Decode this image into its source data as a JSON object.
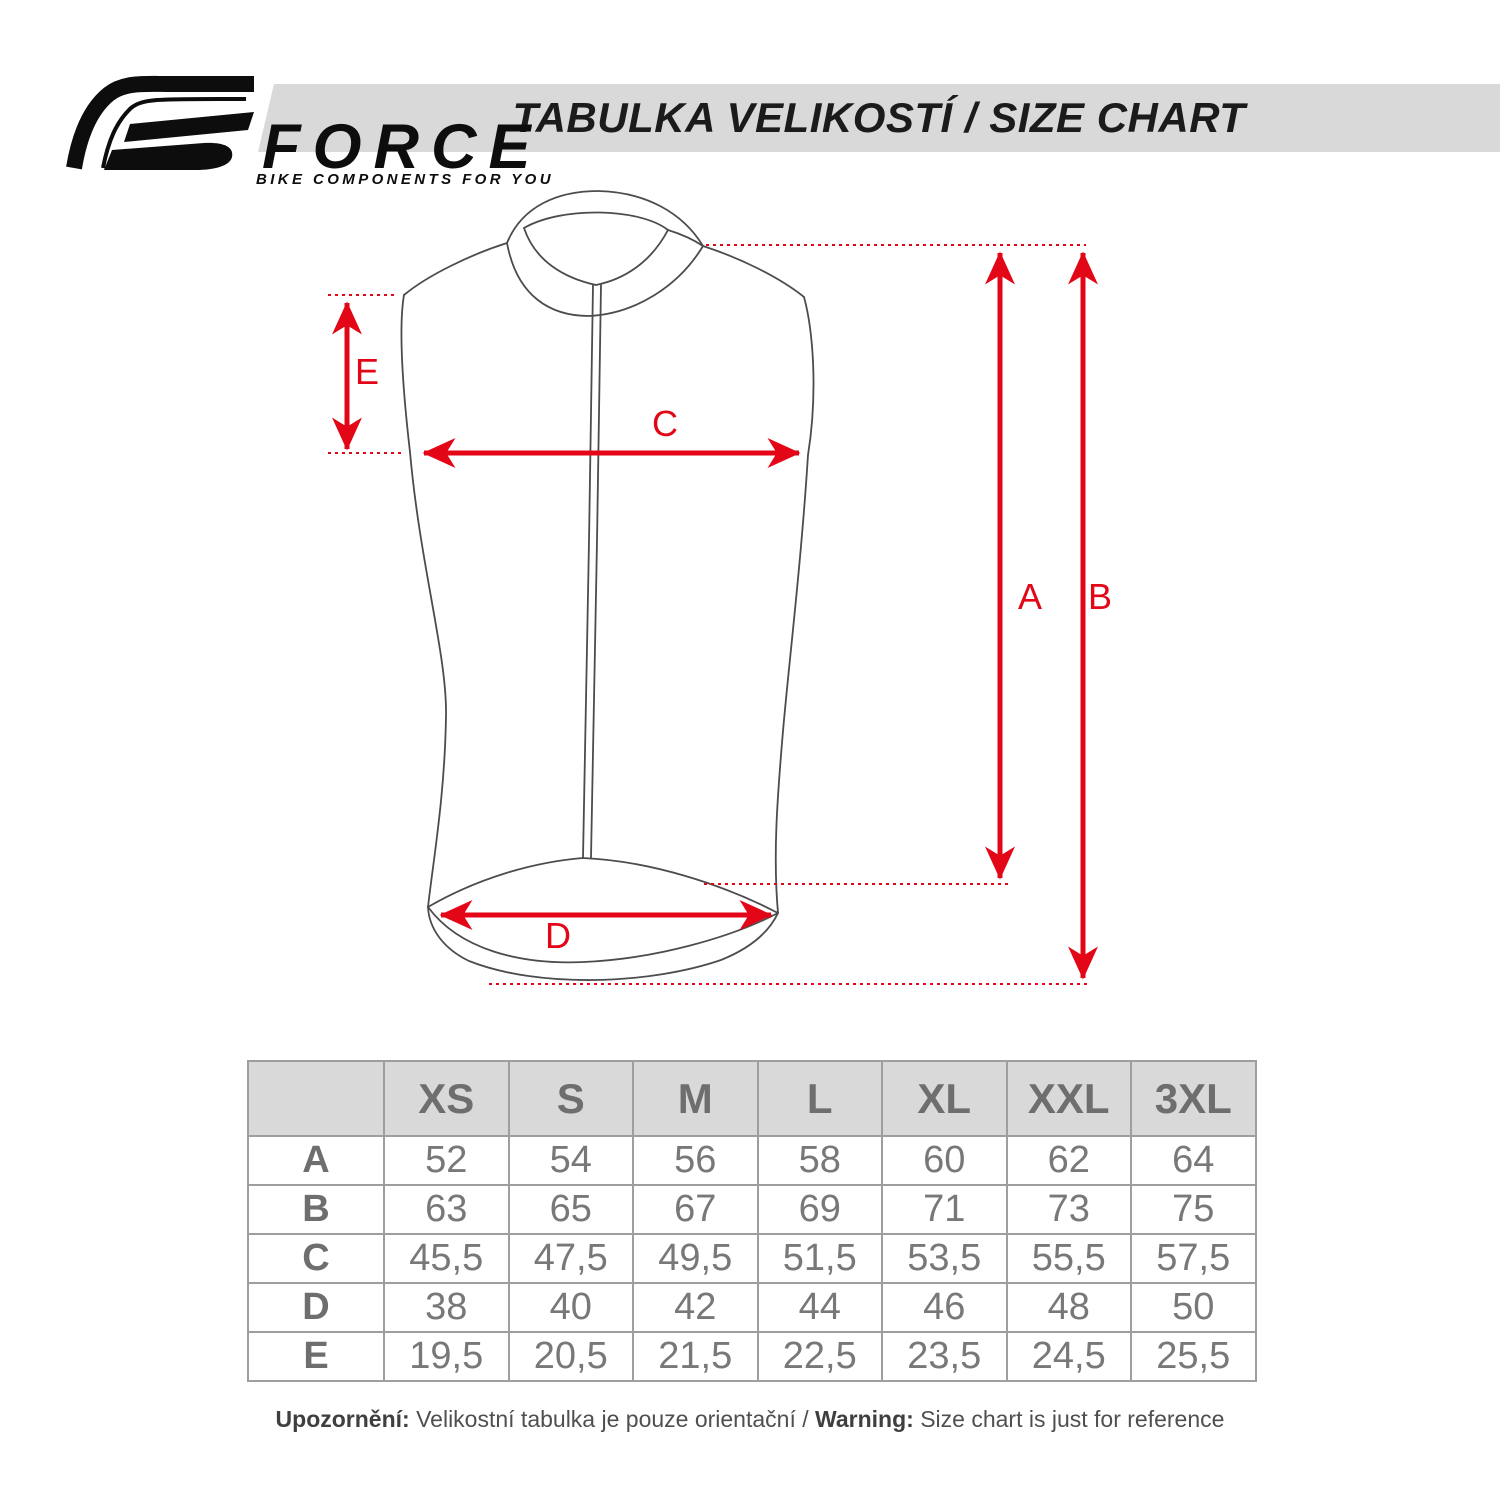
{
  "brand": {
    "name": "FORCE",
    "tagline": "BIKE COMPONENTS FOR YOU"
  },
  "title": "TABULKA VELIKOSTÍ / SIZE CHART",
  "diagram": {
    "label_a": "A",
    "label_b": "B",
    "label_c": "C",
    "label_d": "D",
    "label_e": "E"
  },
  "size_table": {
    "columns": [
      "XS",
      "S",
      "M",
      "L",
      "XL",
      "XXL",
      "3XL"
    ],
    "rows": [
      {
        "label": "A",
        "values": [
          "52",
          "54",
          "56",
          "58",
          "60",
          "62",
          "64"
        ]
      },
      {
        "label": "B",
        "values": [
          "63",
          "65",
          "67",
          "69",
          "71",
          "73",
          "75"
        ]
      },
      {
        "label": "C",
        "values": [
          "45,5",
          "47,5",
          "49,5",
          "51,5",
          "53,5",
          "55,5",
          "57,5"
        ]
      },
      {
        "label": "D",
        "values": [
          "38",
          "40",
          "42",
          "44",
          "46",
          "48",
          "50"
        ]
      },
      {
        "label": "E",
        "values": [
          "19,5",
          "20,5",
          "21,5",
          "22,5",
          "23,5",
          "24,5",
          "25,5"
        ]
      }
    ]
  },
  "footer": {
    "cs_label": "Upozornění:",
    "cs_text": " Velikostní tabulka je pouze orientační / ",
    "en_label": "Warning:",
    "en_text": " Size chart is just for reference"
  },
  "colors": {
    "accent_red": "#e30617",
    "header_bg": "#d9d9d9",
    "table_text": "#787878",
    "table_heading": "#6e6e6e",
    "line_gray": "#4c4c4e"
  }
}
